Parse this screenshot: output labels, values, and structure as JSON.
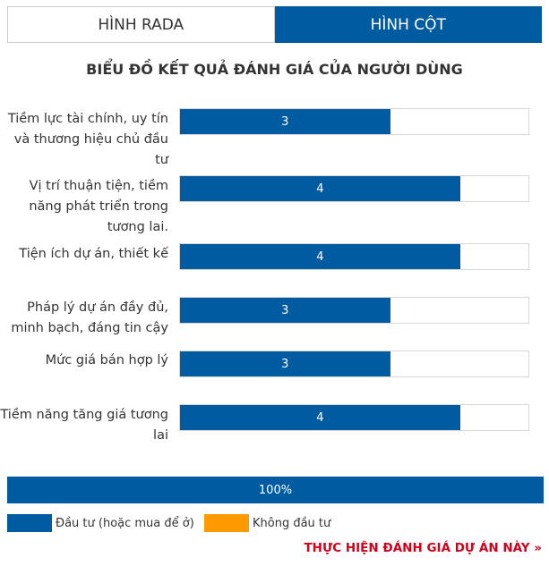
{
  "tabs": [
    {
      "label": "HÌNH RADA",
      "active": false
    },
    {
      "label": "HÌNH CỘT",
      "active": true
    }
  ],
  "chart_data": {
    "type": "bar",
    "orientation": "horizontal",
    "title": "BIỂU ĐỒ KẾT QUẢ ĐÁNH GIÁ CỦA NGƯỜI DÙNG",
    "categories": [
      "Tiềm lực tài chính, uy tín và thương hiệu chủ đầu tư",
      "Vị trí thuận tiện, tiềm năng phát triển trong tương lai.",
      "Tiện ích dự án, thiết kế",
      "Pháp lý dự án đầy đủ, minh bạch, đáng tin cậy",
      "Mức giá bán hợp lý",
      "Tiềm năng tăng giá tương lai"
    ],
    "values": [
      3,
      4,
      4,
      3,
      3,
      4
    ],
    "xlim": [
      0,
      5
    ],
    "bar_color": "#005ba1"
  },
  "investment": {
    "percent_label": "100%",
    "invest_share": 1.0,
    "legend": [
      {
        "label": "Đầu tư (hoặc mua để ở)",
        "color": "#005ba1"
      },
      {
        "label": "Không đầu tư",
        "color": "#ff9900"
      }
    ]
  },
  "cta_label": "THỰC HIỆN ĐÁNH GIÁ DỰ ÁN NÀY »"
}
